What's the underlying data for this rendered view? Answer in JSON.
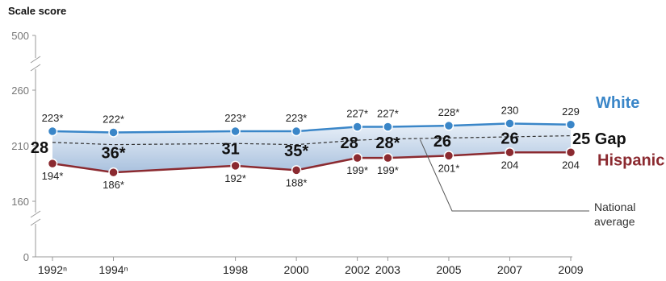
{
  "chart_data": {
    "type": "line",
    "ylabel": "Scale score",
    "y_ticks": [
      "500",
      "260",
      "210",
      "160",
      "0"
    ],
    "x": [
      "1992ⁿ",
      "1994ⁿ",
      "1998",
      "2000",
      "2002",
      "2003",
      "2005",
      "2007",
      "2009"
    ],
    "x_years": [
      1992,
      1994,
      1998,
      2000,
      2002,
      2003,
      2005,
      2007,
      2009
    ],
    "series": [
      {
        "name": "White",
        "color": "#3a86c8",
        "values": [
          223,
          222,
          223,
          223,
          227,
          227,
          228,
          230,
          229
        ],
        "labels": [
          "223*",
          "222*",
          "223*",
          "223*",
          "227*",
          "227*",
          "228*",
          "230",
          "229"
        ]
      },
      {
        "name": "Hispanic",
        "color": "#8b2a30",
        "values": [
          194,
          186,
          192,
          188,
          199,
          199,
          201,
          204,
          204
        ],
        "labels": [
          "194*",
          "186*",
          "192*",
          "188*",
          "199*",
          "199*",
          "201*",
          "204",
          "204"
        ]
      }
    ],
    "gaps": [
      "28",
      "36*",
      "31",
      "35*",
      "28",
      "28*",
      "26",
      "26",
      "25"
    ],
    "gap_legend": "Gap",
    "national_average": {
      "label": "National average",
      "label_lines": [
        "National",
        "average"
      ],
      "values": [
        213,
        211,
        212,
        211,
        215,
        216,
        217,
        218,
        219
      ]
    },
    "broken_axis": true
  }
}
